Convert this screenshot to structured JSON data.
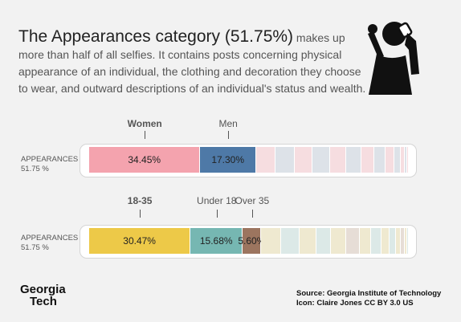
{
  "intro": {
    "headline": "The Appearances category (51.75%)",
    "body": " makes up more than half of all selfies. It contains posts concerning physical appearance of an individual, the clothing and decoration they choose to wear, and outward descriptions of an individual's status and wealth."
  },
  "icons": {
    "selfie": "person-taking-selfie-icon"
  },
  "chart_data": [
    {
      "type": "bar",
      "orientation": "horizontal-stacked",
      "row_label": "APPEARANCES",
      "row_value": "51.75 %",
      "series": [
        {
          "name": "Women",
          "value": 34.45,
          "label": "34.45%",
          "color": "#f4a3ae",
          "bold": true
        },
        {
          "name": "Men",
          "value": 17.3,
          "label": "17.30%",
          "color": "#4e79a7",
          "bold": false
        }
      ],
      "other_segments": [
        {
          "value": 6.0,
          "color": "#f6dde0"
        },
        {
          "value": 6.0,
          "color": "#dde2e8"
        },
        {
          "value": 5.5,
          "color": "#f6dde0"
        },
        {
          "value": 5.5,
          "color": "#dde2e8"
        },
        {
          "value": 5.0,
          "color": "#f6dde0"
        },
        {
          "value": 4.5,
          "color": "#dde2e8"
        },
        {
          "value": 4.0,
          "color": "#f6dde0"
        },
        {
          "value": 3.5,
          "color": "#dde2e8"
        },
        {
          "value": 2.8,
          "color": "#f6dde0"
        },
        {
          "value": 2.0,
          "color": "#dde2e8"
        },
        {
          "value": 1.2,
          "color": "#f6dde0"
        },
        {
          "value": 0.8,
          "color": "#dde2e8"
        },
        {
          "value": 0.5,
          "color": "#f6dde0"
        }
      ]
    },
    {
      "type": "bar",
      "orientation": "horizontal-stacked",
      "row_label": "APPEARANCES",
      "row_value": "51.75 %",
      "series": [
        {
          "name": "18-35",
          "value": 30.47,
          "label": "30.47%",
          "color": "#edc948",
          "bold": true
        },
        {
          "name": "Under 18",
          "value": 15.68,
          "label": "15.68%",
          "color": "#76b7b2",
          "bold": false
        },
        {
          "name": "Over 35",
          "value": 5.6,
          "label": "5.60%",
          "color": "#9c755f",
          "bold": false
        }
      ],
      "other_segments": [
        {
          "value": 6.0,
          "color": "#efe9d0"
        },
        {
          "value": 5.5,
          "color": "#dce9e7"
        },
        {
          "value": 5.0,
          "color": "#efe9d0"
        },
        {
          "value": 4.5,
          "color": "#dce9e7"
        },
        {
          "value": 4.5,
          "color": "#efe9d0"
        },
        {
          "value": 4.0,
          "color": "#e6ddd6"
        },
        {
          "value": 3.5,
          "color": "#efe9d0"
        },
        {
          "value": 3.0,
          "color": "#dce9e7"
        },
        {
          "value": 2.5,
          "color": "#efe9d0"
        },
        {
          "value": 2.0,
          "color": "#dce9e7"
        },
        {
          "value": 1.5,
          "color": "#efe9d0"
        },
        {
          "value": 1.0,
          "color": "#e6ddd6"
        },
        {
          "value": 0.8,
          "color": "#efe9d0"
        },
        {
          "value": 0.5,
          "color": "#dce9e7"
        }
      ]
    }
  ],
  "footer": {
    "logo_line1": "Georgia",
    "logo_line2": "Tech",
    "source": "Source: Georgia Institute of Technology",
    "icon_credit": "Icon: Claire Jones CC BY 3.0 US"
  }
}
